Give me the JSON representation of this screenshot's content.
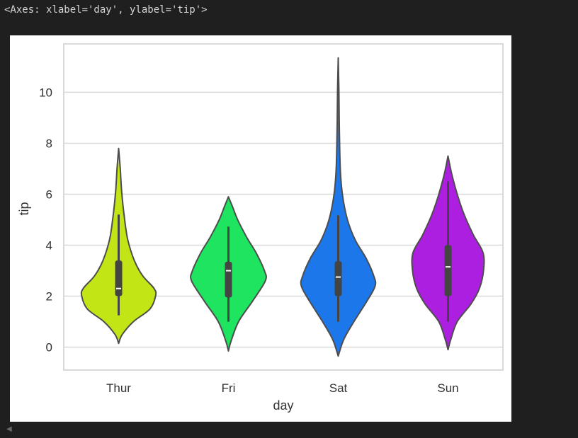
{
  "cell_output": {
    "repr_text": "<Axes: xlabel='day', ylabel='tip'>"
  },
  "scroll_icon": "chevron-left-icon",
  "chart_data": {
    "type": "violin",
    "xlabel": "day",
    "ylabel": "tip",
    "categories": [
      "Thur",
      "Fri",
      "Sat",
      "Sun"
    ],
    "ylim": [
      -0.9,
      11.9
    ],
    "yticks": [
      0,
      2,
      4,
      6,
      8,
      10
    ],
    "grid": true,
    "axes_background": "#ffffff",
    "grid_color": "#d9d9d9",
    "outline_color": "#4d4d4d",
    "violins": [
      {
        "category": "Thur",
        "color": "#c2e516",
        "box": {
          "whisker_low": 1.25,
          "q1": 2.0,
          "median": 2.3,
          "q3": 3.4,
          "whisker_high": 5.2
        },
        "profile": [
          [
            0.15,
            0
          ],
          [
            0.5,
            0.08
          ],
          [
            1.0,
            0.32
          ],
          [
            1.5,
            0.68
          ],
          [
            2.0,
            0.8
          ],
          [
            2.3,
            0.77
          ],
          [
            2.8,
            0.52
          ],
          [
            3.4,
            0.34
          ],
          [
            4.2,
            0.2
          ],
          [
            5.0,
            0.13
          ],
          [
            6.0,
            0.07
          ],
          [
            7.0,
            0.035
          ],
          [
            7.8,
            0
          ]
        ]
      },
      {
        "category": "Fri",
        "color": "#1ee460",
        "box": {
          "whisker_low": 1.0,
          "q1": 1.95,
          "median": 3.0,
          "q3": 3.35,
          "whisker_high": 4.73
        },
        "profile": [
          [
            -0.15,
            0
          ],
          [
            0.2,
            0.05
          ],
          [
            1.0,
            0.22
          ],
          [
            1.8,
            0.52
          ],
          [
            2.6,
            0.8
          ],
          [
            3.0,
            0.78
          ],
          [
            3.7,
            0.6
          ],
          [
            4.3,
            0.4
          ],
          [
            5.0,
            0.2
          ],
          [
            5.5,
            0.09
          ],
          [
            5.9,
            0
          ]
        ]
      },
      {
        "category": "Sat",
        "color": "#1c78ea",
        "box": {
          "whisker_low": 1.0,
          "q1": 2.0,
          "median": 2.75,
          "q3": 3.37,
          "whisker_high": 5.17
        },
        "profile": [
          [
            -0.35,
            0
          ],
          [
            0.3,
            0.12
          ],
          [
            1.0,
            0.34
          ],
          [
            1.8,
            0.62
          ],
          [
            2.4,
            0.8
          ],
          [
            2.8,
            0.77
          ],
          [
            3.5,
            0.6
          ],
          [
            4.2,
            0.37
          ],
          [
            5.0,
            0.2
          ],
          [
            6.0,
            0.09
          ],
          [
            7.0,
            0.045
          ],
          [
            8.5,
            0.025
          ],
          [
            10.0,
            0.015
          ],
          [
            11.35,
            0
          ]
        ]
      },
      {
        "category": "Sun",
        "color": "#ad1fe0",
        "box": {
          "whisker_low": 1.0,
          "q1": 2.0,
          "median": 3.15,
          "q3": 4.0,
          "whisker_high": 6.5
        },
        "profile": [
          [
            -0.1,
            0
          ],
          [
            0.3,
            0.06
          ],
          [
            1.0,
            0.2
          ],
          [
            1.7,
            0.5
          ],
          [
            2.3,
            0.68
          ],
          [
            3.0,
            0.77
          ],
          [
            3.7,
            0.76
          ],
          [
            4.4,
            0.55
          ],
          [
            5.2,
            0.35
          ],
          [
            6.0,
            0.2
          ],
          [
            6.8,
            0.08
          ],
          [
            7.5,
            0
          ]
        ]
      }
    ]
  }
}
